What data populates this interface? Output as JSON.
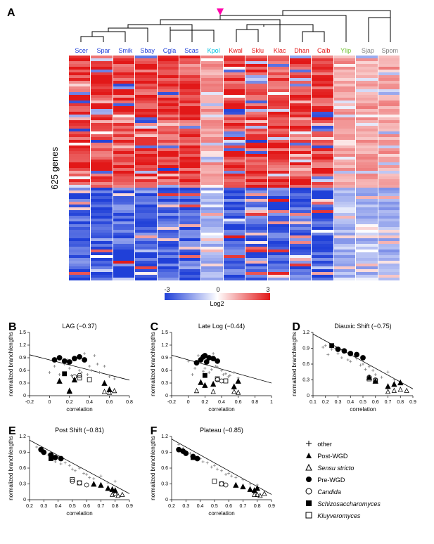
{
  "panelA": {
    "label": "A",
    "species": [
      {
        "name": "Scer",
        "color": "#2040d8"
      },
      {
        "name": "Spar",
        "color": "#2040d8"
      },
      {
        "name": "Smik",
        "color": "#2040d8"
      },
      {
        "name": "Sbay",
        "color": "#2040d8"
      },
      {
        "name": "Cgla",
        "color": "#2040d8"
      },
      {
        "name": "Scas",
        "color": "#2040d8"
      },
      {
        "name": "Kpol",
        "color": "#00c0e0"
      },
      {
        "name": "Kwal",
        "color": "#e21818"
      },
      {
        "name": "Sklu",
        "color": "#e21818"
      },
      {
        "name": "Klac",
        "color": "#e21818"
      },
      {
        "name": "Dhan",
        "color": "#e21818"
      },
      {
        "name": "Calb",
        "color": "#e21818"
      },
      {
        "name": "Ylip",
        "color": "#70c030"
      },
      {
        "name": "Sjap",
        "color": "#808080"
      },
      {
        "name": "Spom",
        "color": "#808080"
      }
    ],
    "ylabel": "625 genes",
    "colorbar": {
      "min": "-3",
      "mid": "0",
      "max": "3",
      "title": "Log2",
      "colors": [
        "#2040d8",
        "#ffffff",
        "#e21818"
      ]
    },
    "heatmap_seed": 42,
    "heatmap_rows": 80,
    "heatmap_cols": 15
  },
  "scatterPanels": [
    {
      "label": "B",
      "title": "LAG (−0.37)",
      "xlabel": "correlation",
      "ylabel": "normalized branchlengths",
      "xlim": [
        -0.2,
        0.8
      ],
      "xticks": [
        -0.2,
        0,
        0.2,
        0.4,
        0.6,
        0.8
      ],
      "ylim": [
        0,
        1.5
      ],
      "yticks": [
        0,
        0.3,
        0.6,
        0.9,
        1.2,
        1.5
      ],
      "slope": -0.6,
      "intercept": 0.85,
      "points_other": [
        [
          0.1,
          0.5
        ],
        [
          0.2,
          0.65
        ],
        [
          0.25,
          0.9
        ],
        [
          0.3,
          0.6
        ],
        [
          0.32,
          0.55
        ],
        [
          0.35,
          1.0
        ],
        [
          0.4,
          0.7
        ],
        [
          0.42,
          0.6
        ],
        [
          0.45,
          0.95
        ],
        [
          0.5,
          0.55
        ],
        [
          0.55,
          0.7
        ],
        [
          0.6,
          0.45
        ],
        [
          0.65,
          0.4
        ],
        [
          0.0,
          0.55
        ],
        [
          0.15,
          0.75
        ],
        [
          0.18,
          0.85
        ],
        [
          0.05,
          0.7
        ],
        [
          0.48,
          0.75
        ],
        [
          0.38,
          0.5
        ],
        [
          0.22,
          0.48
        ]
      ],
      "points_postWGD": [
        [
          0.1,
          0.35
        ],
        [
          0.55,
          0.3
        ],
        [
          0.6,
          0.15
        ],
        [
          0.2,
          0.12
        ],
        [
          0.25,
          0.38
        ]
      ],
      "points_sensu": [
        [
          0.55,
          0.1
        ],
        [
          0.6,
          0.08
        ],
        [
          0.2,
          0.1
        ],
        [
          0.65,
          0.12
        ]
      ],
      "points_preWGD": [
        [
          0.05,
          0.85
        ],
        [
          0.1,
          0.9
        ],
        [
          0.25,
          0.88
        ],
        [
          0.15,
          0.82
        ],
        [
          0.3,
          0.92
        ],
        [
          0.35,
          0.85
        ],
        [
          0.2,
          0.8
        ]
      ],
      "points_candida": [
        [
          0.25,
          0.45
        ],
        [
          0.3,
          0.48
        ]
      ],
      "points_schizo": [
        [
          0.15,
          0.52
        ]
      ],
      "points_kluyver": [
        [
          0.3,
          0.42
        ],
        [
          0.4,
          0.38
        ]
      ]
    },
    {
      "label": "C",
      "title": "Late Log (−0.44)",
      "xlabel": "correlation",
      "ylabel": "normalized branchlengths",
      "xlim": [
        -0.2,
        1.0
      ],
      "xticks": [
        -0.2,
        0,
        0.2,
        0.4,
        0.6,
        0.8,
        1.0
      ],
      "ylim": [
        0,
        1.5
      ],
      "yticks": [
        0,
        0.3,
        0.6,
        0.9,
        1.2,
        1.5
      ],
      "slope": -0.55,
      "intercept": 0.85,
      "points_other": [
        [
          0.05,
          0.5
        ],
        [
          0.1,
          0.75
        ],
        [
          0.15,
          0.9
        ],
        [
          0.2,
          0.65
        ],
        [
          0.25,
          0.55
        ],
        [
          0.3,
          1.0
        ],
        [
          0.35,
          0.68
        ],
        [
          0.4,
          0.6
        ],
        [
          0.45,
          0.52
        ],
        [
          0.5,
          0.48
        ],
        [
          0.55,
          0.55
        ],
        [
          0.6,
          0.42
        ],
        [
          0.0,
          0.82
        ],
        [
          0.12,
          0.95
        ],
        [
          0.18,
          0.58
        ],
        [
          0.28,
          0.62
        ],
        [
          0.33,
          0.7
        ],
        [
          0.42,
          0.5
        ],
        [
          0.48,
          0.45
        ],
        [
          0.08,
          0.65
        ]
      ],
      "points_postWGD": [
        [
          0.15,
          0.32
        ],
        [
          0.3,
          0.28
        ],
        [
          0.6,
          0.35
        ],
        [
          0.2,
          0.25
        ],
        [
          0.55,
          0.22
        ]
      ],
      "points_sensu": [
        [
          0.1,
          0.12
        ],
        [
          0.55,
          0.1
        ],
        [
          0.6,
          0.08
        ],
        [
          0.3,
          0.1
        ]
      ],
      "points_preWGD": [
        [
          0.15,
          0.85
        ],
        [
          0.2,
          0.95
        ],
        [
          0.25,
          0.9
        ],
        [
          0.3,
          0.88
        ],
        [
          0.35,
          0.82
        ],
        [
          0.1,
          0.78
        ],
        [
          0.18,
          0.92
        ],
        [
          0.22,
          0.8
        ]
      ],
      "points_candida": [
        [
          0.35,
          0.38
        ],
        [
          0.4,
          0.35
        ]
      ],
      "points_schizo": [
        [
          0.2,
          0.48
        ]
      ],
      "points_kluyver": [
        [
          0.35,
          0.4
        ],
        [
          0.45,
          0.35
        ]
      ]
    },
    {
      "label": "D",
      "title": "Diauxic Shift (−0.75)",
      "xlabel": "correlation",
      "ylabel": "normalized branchlengths",
      "xlim": [
        0.1,
        0.9
      ],
      "xticks": [
        0.1,
        0.2,
        0.3,
        0.4,
        0.5,
        0.6,
        0.7,
        0.8,
        0.9
      ],
      "ylim": [
        0,
        1.2
      ],
      "yticks": [
        0,
        0.3,
        0.6,
        0.9,
        1.2
      ],
      "slope": -1.3,
      "intercept": 1.3,
      "points_other": [
        [
          0.2,
          0.95
        ],
        [
          0.25,
          0.88
        ],
        [
          0.3,
          0.8
        ],
        [
          0.35,
          0.85
        ],
        [
          0.4,
          0.65
        ],
        [
          0.45,
          0.7
        ],
        [
          0.5,
          0.6
        ],
        [
          0.55,
          0.55
        ],
        [
          0.6,
          0.4
        ],
        [
          0.65,
          0.35
        ],
        [
          0.7,
          0.45
        ],
        [
          0.75,
          0.3
        ],
        [
          0.22,
          0.78
        ],
        [
          0.28,
          0.9
        ],
        [
          0.33,
          0.72
        ],
        [
          0.38,
          0.68
        ],
        [
          0.48,
          0.58
        ],
        [
          0.52,
          0.5
        ],
        [
          0.58,
          0.48
        ],
        [
          0.18,
          0.92
        ]
      ],
      "points_postWGD": [
        [
          0.6,
          0.28
        ],
        [
          0.7,
          0.18
        ],
        [
          0.55,
          0.35
        ],
        [
          0.8,
          0.25
        ],
        [
          0.75,
          0.22
        ]
      ],
      "points_sensu": [
        [
          0.75,
          0.1
        ],
        [
          0.8,
          0.12
        ],
        [
          0.7,
          0.08
        ],
        [
          0.85,
          0.1
        ]
      ],
      "points_preWGD": [
        [
          0.35,
          0.85
        ],
        [
          0.4,
          0.8
        ],
        [
          0.45,
          0.78
        ],
        [
          0.3,
          0.88
        ],
        [
          0.5,
          0.72
        ]
      ],
      "points_candida": [
        [
          0.55,
          0.35
        ],
        [
          0.6,
          0.3
        ]
      ],
      "points_schizo": [
        [
          0.25,
          0.95
        ]
      ],
      "points_kluyver": [
        [
          0.55,
          0.32
        ],
        [
          0.6,
          0.28
        ]
      ]
    },
    {
      "label": "E",
      "title": "Post Shift (−0.81)",
      "xlabel": "correlation",
      "ylabel": "normalized branchlengths",
      "xlim": [
        0.2,
        0.9
      ],
      "xticks": [
        0.2,
        0.3,
        0.4,
        0.5,
        0.6,
        0.7,
        0.8,
        0.9
      ],
      "ylim": [
        0,
        1.2
      ],
      "yticks": [
        0,
        0.3,
        0.6,
        0.9,
        1.2
      ],
      "slope": -1.45,
      "intercept": 1.42,
      "points_other": [
        [
          0.25,
          1.0
        ],
        [
          0.3,
          0.88
        ],
        [
          0.35,
          0.78
        ],
        [
          0.4,
          0.82
        ],
        [
          0.45,
          0.7
        ],
        [
          0.5,
          0.58
        ],
        [
          0.55,
          0.6
        ],
        [
          0.6,
          0.48
        ],
        [
          0.65,
          0.4
        ],
        [
          0.7,
          0.45
        ],
        [
          0.75,
          0.32
        ],
        [
          0.8,
          0.35
        ],
        [
          0.28,
          0.92
        ],
        [
          0.33,
          0.85
        ],
        [
          0.38,
          0.72
        ],
        [
          0.42,
          0.68
        ],
        [
          0.48,
          0.65
        ],
        [
          0.52,
          0.55
        ],
        [
          0.58,
          0.5
        ],
        [
          0.62,
          0.42
        ]
      ],
      "points_postWGD": [
        [
          0.7,
          0.28
        ],
        [
          0.75,
          0.22
        ],
        [
          0.65,
          0.3
        ],
        [
          0.8,
          0.18
        ],
        [
          0.78,
          0.2
        ]
      ],
      "points_sensu": [
        [
          0.78,
          0.1
        ],
        [
          0.82,
          0.08
        ],
        [
          0.8,
          0.12
        ],
        [
          0.85,
          0.1
        ]
      ],
      "points_preWGD": [
        [
          0.3,
          0.9
        ],
        [
          0.35,
          0.85
        ],
        [
          0.28,
          0.95
        ],
        [
          0.38,
          0.8
        ],
        [
          0.42,
          0.78
        ]
      ],
      "points_candida": [
        [
          0.55,
          0.32
        ],
        [
          0.5,
          0.35
        ],
        [
          0.6,
          0.28
        ]
      ],
      "points_schizo": [
        [
          0.35,
          0.78
        ]
      ],
      "points_kluyver": [
        [
          0.5,
          0.38
        ],
        [
          0.55,
          0.32
        ]
      ]
    },
    {
      "label": "F",
      "title": "Plateau (−0.85)",
      "xlabel": "correlation",
      "ylabel": "normalized branchlengths",
      "xlim": [
        0.2,
        0.9
      ],
      "xticks": [
        0.2,
        0.3,
        0.4,
        0.5,
        0.6,
        0.7,
        0.8,
        0.9
      ],
      "ylim": [
        0,
        1.2
      ],
      "yticks": [
        0,
        0.3,
        0.6,
        0.9,
        1.2
      ],
      "slope": -1.5,
      "intercept": 1.45,
      "points_other": [
        [
          0.25,
          1.05
        ],
        [
          0.3,
          0.92
        ],
        [
          0.35,
          0.85
        ],
        [
          0.4,
          0.78
        ],
        [
          0.45,
          0.7
        ],
        [
          0.5,
          0.65
        ],
        [
          0.55,
          0.55
        ],
        [
          0.6,
          0.5
        ],
        [
          0.65,
          0.42
        ],
        [
          0.7,
          0.38
        ],
        [
          0.75,
          0.3
        ],
        [
          0.8,
          0.28
        ],
        [
          0.28,
          0.98
        ],
        [
          0.33,
          0.88
        ],
        [
          0.38,
          0.8
        ],
        [
          0.42,
          0.72
        ],
        [
          0.48,
          0.62
        ],
        [
          0.52,
          0.58
        ],
        [
          0.58,
          0.48
        ],
        [
          0.62,
          0.45
        ]
      ],
      "points_postWGD": [
        [
          0.7,
          0.25
        ],
        [
          0.75,
          0.2
        ],
        [
          0.78,
          0.18
        ],
        [
          0.65,
          0.28
        ],
        [
          0.8,
          0.22
        ]
      ],
      "points_sensu": [
        [
          0.8,
          0.1
        ],
        [
          0.82,
          0.08
        ],
        [
          0.85,
          0.12
        ],
        [
          0.78,
          0.1
        ]
      ],
      "points_preWGD": [
        [
          0.25,
          0.95
        ],
        [
          0.3,
          0.88
        ],
        [
          0.28,
          0.92
        ],
        [
          0.35,
          0.82
        ],
        [
          0.38,
          0.78
        ]
      ],
      "points_candida": [
        [
          0.55,
          0.3
        ],
        [
          0.58,
          0.28
        ]
      ],
      "points_schizo": [
        [
          0.35,
          0.8
        ]
      ],
      "points_kluyver": [
        [
          0.5,
          0.35
        ],
        [
          0.55,
          0.3
        ]
      ]
    }
  ],
  "legend": {
    "items": [
      {
        "symbol": "plus",
        "label": "other",
        "italic": false
      },
      {
        "symbol": "triangle-filled",
        "label": "Post-WGD",
        "italic": false
      },
      {
        "symbol": "triangle-open",
        "label": "Sensu stricto",
        "italic": true
      },
      {
        "symbol": "circle-filled",
        "label": "Pre-WGD",
        "italic": false
      },
      {
        "symbol": "circle-open",
        "label": "Candida",
        "italic": true
      },
      {
        "symbol": "square-filled",
        "label": "Schizosaccharomyces",
        "italic": true
      },
      {
        "symbol": "square-open",
        "label": "Kluyveromyces",
        "italic": true
      }
    ]
  },
  "styling": {
    "axis_fontsize": 8,
    "title_fontsize": 10,
    "marker_color": "#000000",
    "other_marker_color": "#808080",
    "line_color": "#000000",
    "background": "#ffffff"
  }
}
